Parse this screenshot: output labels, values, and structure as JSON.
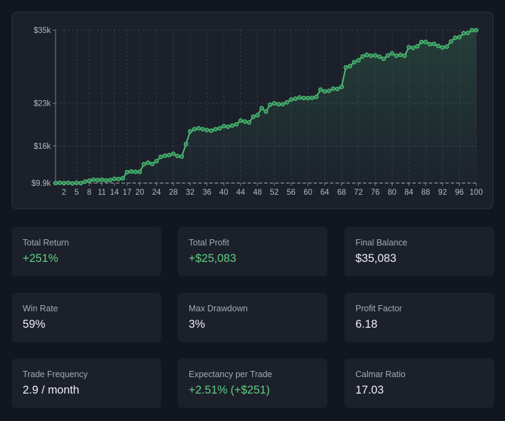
{
  "colors": {
    "line": "#4fbf77",
    "point_fill": "#2f7e4f",
    "positive": "#5fcf80"
  },
  "chart_data": {
    "type": "line",
    "title": "",
    "xlabel": "",
    "ylabel": "",
    "x_ticks": [
      "2",
      "5",
      "8",
      "11",
      "14",
      "17",
      "20",
      "24",
      "28",
      "32",
      "36",
      "40",
      "44",
      "48",
      "52",
      "56",
      "60",
      "64",
      "68",
      "72",
      "76",
      "80",
      "84",
      "88",
      "92",
      "96",
      "100"
    ],
    "y_ticks": [
      "$35k",
      "$23k",
      "$16k",
      "$9.9k"
    ],
    "y_tick_values": [
      35000,
      23000,
      16000,
      9900
    ],
    "xlim": [
      0,
      100
    ],
    "ylim": [
      9900,
      35000
    ],
    "grid": true,
    "x": [
      0,
      1,
      2,
      3,
      4,
      5,
      6,
      7,
      8,
      9,
      10,
      11,
      12,
      13,
      14,
      15,
      16,
      17,
      18,
      19,
      20,
      21,
      22,
      23,
      24,
      25,
      26,
      27,
      28,
      29,
      30,
      31,
      32,
      33,
      34,
      35,
      36,
      37,
      38,
      39,
      40,
      41,
      42,
      43,
      44,
      45,
      46,
      47,
      48,
      49,
      50,
      51,
      52,
      53,
      54,
      55,
      56,
      57,
      58,
      59,
      60,
      61,
      62,
      63,
      64,
      65,
      66,
      67,
      68,
      69,
      70,
      71,
      72,
      73,
      74,
      75,
      76,
      77,
      78,
      79,
      80,
      81,
      82,
      83,
      84,
      85,
      86,
      87,
      88,
      89,
      90,
      91,
      92,
      93,
      94,
      95,
      96,
      97,
      98,
      99,
      100
    ],
    "values": [
      9900,
      9950,
      9900,
      9950,
      9850,
      9950,
      9900,
      10150,
      10300,
      10450,
      10400,
      10450,
      10350,
      10400,
      10600,
      10550,
      10700,
      11700,
      11800,
      11750,
      11750,
      13000,
      13250,
      13050,
      13500,
      14200,
      14400,
      14500,
      14700,
      14350,
      14250,
      16300,
      18400,
      18750,
      18900,
      18750,
      18600,
      18500,
      18750,
      18900,
      19250,
      19150,
      19350,
      19550,
      20150,
      20000,
      19850,
      20800,
      21050,
      22200,
      21650,
      22750,
      23000,
      22850,
      22850,
      23150,
      23600,
      23750,
      23950,
      23850,
      23850,
      23900,
      24050,
      25250,
      24950,
      25050,
      25400,
      25350,
      25700,
      28900,
      29100,
      29750,
      30050,
      30700,
      30950,
      30800,
      30850,
      30650,
      30300,
      30850,
      31200,
      30800,
      30950,
      30800,
      32200,
      32100,
      32350,
      33050,
      33050,
      32700,
      32750,
      32400,
      32150,
      32300,
      33150,
      33750,
      33850,
      34500,
      34550,
      35000,
      35000
    ]
  },
  "stats": [
    {
      "label": "Total Return",
      "value": "+251%",
      "positive": true
    },
    {
      "label": "Total Profit",
      "value": "+$25,083",
      "positive": true
    },
    {
      "label": "Final Balance",
      "value": "$35,083",
      "positive": false
    },
    {
      "label": "Win Rate",
      "value": "59%",
      "positive": false
    },
    {
      "label": "Max Drawdown",
      "value": "3%",
      "positive": false
    },
    {
      "label": "Profit Factor",
      "value": "6.18",
      "positive": false
    },
    {
      "label": "Trade Frequency",
      "value": "2.9 / month",
      "positive": false
    },
    {
      "label": "Expectancy per Trade",
      "value": "+2.51% (+$251)",
      "positive": true
    },
    {
      "label": "Calmar Ratio",
      "value": "17.03",
      "positive": false
    }
  ]
}
